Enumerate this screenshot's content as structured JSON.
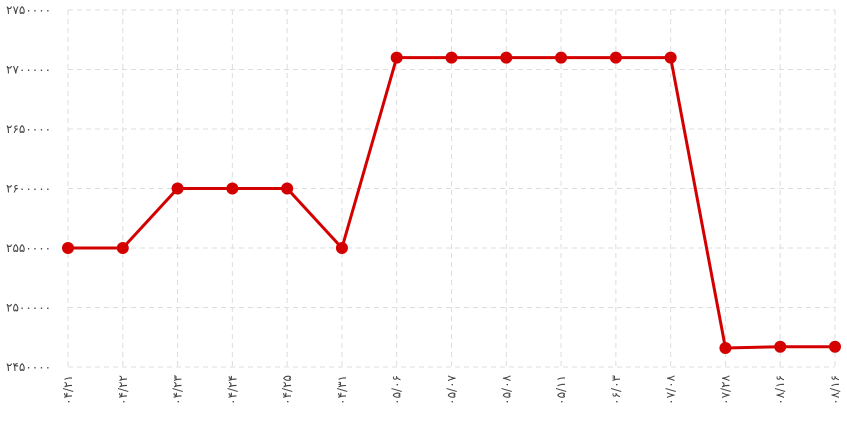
{
  "chart_data": {
    "type": "line",
    "categories": [
      "۰۴/۲۱",
      "۰۴/۲۲",
      "۰۴/۲۳",
      "۰۴/۲۴",
      "۰۴/۲۵",
      "۰۴/۳۱",
      "۰۵/۰۶",
      "۰۵/۰۷",
      "۰۵/۰۸",
      "۰۵/۱۱",
      "۰۶/۰۳",
      "۰۷/۰۸",
      "۰۷/۲۸",
      "۰۸/۱۶",
      "۰۸/۱۶"
    ],
    "series": [
      {
        "color": "#d40000",
        "values": [
          2550000,
          2550000,
          2600000,
          2600000,
          2600000,
          2550000,
          2710000,
          2710000,
          2710000,
          2710000,
          2710000,
          2710000,
          2466000,
          2467000,
          2467000
        ]
      }
    ],
    "ylim": [
      2450000,
      2750000
    ],
    "yticks": [
      {
        "value": 2450000,
        "label": "۲۴۵۰۰۰۰"
      },
      {
        "value": 2500000,
        "label": "۲۵۰۰۰۰۰"
      },
      {
        "value": 2550000,
        "label": "۲۵۵۰۰۰۰"
      },
      {
        "value": 2600000,
        "label": "۲۶۰۰۰۰۰"
      },
      {
        "value": 2650000,
        "label": "۲۶۵۰۰۰۰"
      },
      {
        "value": 2700000,
        "label": "۲۷۰۰۰۰۰"
      },
      {
        "value": 2750000,
        "label": "۲۷۵۰۰۰۰"
      }
    ],
    "grid": true
  }
}
